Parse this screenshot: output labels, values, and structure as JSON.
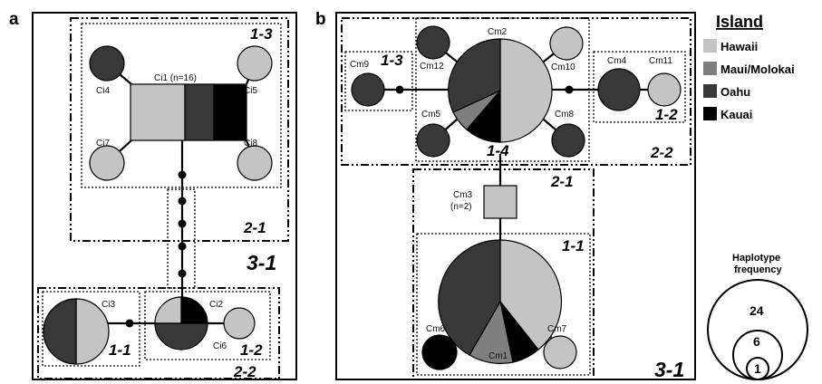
{
  "colors": {
    "hawaii": "#c4c4c4",
    "maui_molokai": "#7f7f7f",
    "oahu": "#383838",
    "kauai": "#000000"
  },
  "panels": {
    "a": "a",
    "b": "b"
  },
  "panel_a": {
    "haplotypes": {
      "ci1": "Ci1 (n=16)",
      "ci2": "Ci2",
      "ci3": "Ci3",
      "ci4": "Ci4",
      "ci5": "Ci5",
      "ci6": "Ci6",
      "ci7": "Ci7",
      "ci8": "Ci8"
    },
    "clades": {
      "c13": "1-3",
      "c21": "2-1",
      "c31": "3-1",
      "c11": "1-1",
      "c12": "1-2",
      "c22": "2-2"
    }
  },
  "panel_b": {
    "haplotypes": {
      "cm1": "Cm1",
      "cm2": "Cm2",
      "cm3": "Cm3",
      "cm3_n": "(n=2)",
      "cm4": "Cm4",
      "cm5": "Cm5",
      "cm6": "Cm6",
      "cm7": "Cm7",
      "cm8": "Cm8",
      "cm9": "Cm9",
      "cm10": "Cm10",
      "cm11": "Cm11",
      "cm12": "Cm12"
    },
    "clades": {
      "c13": "1-3",
      "c14": "1-4",
      "c12": "1-2",
      "c22": "2-2",
      "c21": "2-1",
      "c11": "1-1",
      "c31": "3-1"
    }
  },
  "legend": {
    "title": "Island",
    "items": [
      "Hawaii",
      "Maui/Molokai",
      "Oahu",
      "Kauai"
    ]
  },
  "frequency_legend": {
    "title_line1": "Haplotype",
    "title_line2": "frequency",
    "values": [
      "24",
      "6",
      "1"
    ]
  }
}
